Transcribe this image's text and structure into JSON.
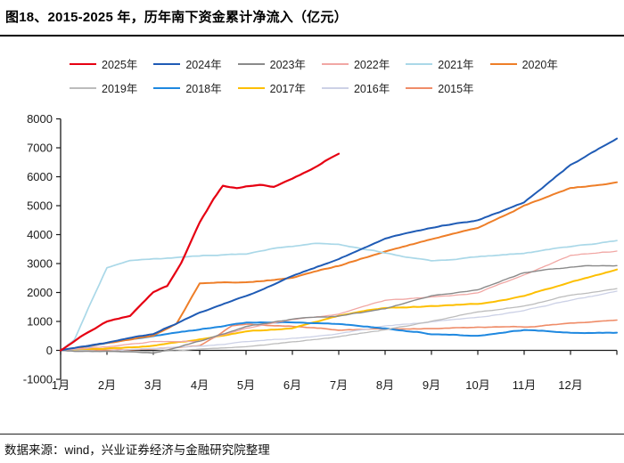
{
  "header": {
    "title": "图18、2015-2025 年，历年南下资金累计净流入（亿元）"
  },
  "footer": {
    "source": "数据来源：wind，兴业证券经济与金融研究院整理"
  },
  "chart_data": {
    "type": "line",
    "title": "历年南下资金累计净流入（亿元）",
    "xlabel": "",
    "ylabel": "",
    "ylim": [
      -1000,
      8000
    ],
    "ytick_interval": 1000,
    "yticks": [
      "8000",
      "7000",
      "6000",
      "5000",
      "4000",
      "3000",
      "2000",
      "1000",
      "0",
      "-1000"
    ],
    "xticks": [
      "1月",
      "2月",
      "3月",
      "4月",
      "5月",
      "6月",
      "7月",
      "8月",
      "9月",
      "10月",
      "11月",
      "12月"
    ],
    "x_unit": "months elapsed since Jan 1 (0 = Jan 1, 12 = Dec 31)",
    "grid": false,
    "legend_position": "top",
    "axis_color": "#1a1a1a",
    "series": [
      {
        "name": "2025年",
        "color": "#e60012",
        "x": [
          0,
          0.5,
          1,
          1.5,
          2,
          2.3,
          2.6,
          3,
          3.3,
          3.5,
          3.8,
          4,
          4.3,
          4.6,
          5,
          5.4,
          5.7,
          6
        ],
        "values": [
          0,
          550,
          1000,
          1200,
          2000,
          2200,
          3000,
          4400,
          5200,
          5650,
          5580,
          5650,
          5700,
          5620,
          5900,
          6200,
          6500,
          6750
        ]
      },
      {
        "name": "2024年",
        "color": "#1f5bb5",
        "x": [
          0,
          1,
          2,
          3,
          4,
          5,
          6,
          7,
          8,
          9,
          10,
          11,
          12
        ],
        "values": [
          0,
          250,
          580,
          1300,
          1900,
          2600,
          3200,
          3900,
          4250,
          4520,
          5100,
          6400,
          7300
        ]
      },
      {
        "name": "2023年",
        "color": "#8a8a8a",
        "x": [
          0,
          1,
          2,
          3,
          4,
          5,
          6,
          7,
          8,
          9,
          10,
          11,
          12
        ],
        "values": [
          0,
          -60,
          -120,
          300,
          800,
          1050,
          1170,
          1400,
          1850,
          2100,
          2700,
          2900,
          2950
        ]
      },
      {
        "name": "2022年",
        "color": "#f1a7a4",
        "x": [
          0,
          1,
          2,
          3,
          4,
          5,
          6,
          7,
          8,
          9,
          10,
          11,
          12
        ],
        "values": [
          0,
          100,
          300,
          350,
          800,
          1100,
          1250,
          1700,
          1800,
          1950,
          2600,
          3250,
          3400
        ]
      },
      {
        "name": "2021年",
        "color": "#aad8e8",
        "x": [
          0,
          0.3,
          0.6,
          1,
          1.5,
          2,
          3,
          4,
          4.5,
          5,
          5.5,
          6,
          7,
          8,
          9,
          10,
          11,
          12
        ],
        "values": [
          0,
          400,
          1500,
          2900,
          3150,
          3200,
          3250,
          3320,
          3500,
          3600,
          3720,
          3700,
          3400,
          3100,
          3250,
          3350,
          3550,
          3750
        ]
      },
      {
        "name": "2020年",
        "color": "#ee7e28",
        "x": [
          0,
          1,
          2,
          2.5,
          3,
          4,
          5,
          6,
          7,
          8,
          9,
          10,
          11,
          12
        ],
        "values": [
          0,
          250,
          500,
          900,
          2280,
          2340,
          2500,
          2900,
          3400,
          3800,
          4200,
          5000,
          5600,
          5800
        ]
      },
      {
        "name": "2019年",
        "color": "#bcbcbc",
        "x": [
          0,
          1,
          2,
          3,
          4,
          5,
          6,
          7,
          8,
          9,
          10,
          11,
          12
        ],
        "values": [
          0,
          -30,
          -50,
          0,
          80,
          250,
          450,
          700,
          1000,
          1300,
          1550,
          1950,
          2150
        ]
      },
      {
        "name": "2018年",
        "color": "#1e88e0",
        "x": [
          0,
          1,
          2,
          3,
          4,
          5,
          6,
          7,
          8,
          9,
          10,
          11,
          12
        ],
        "values": [
          0,
          300,
          450,
          700,
          950,
          1000,
          950,
          800,
          600,
          500,
          700,
          620,
          640
        ]
      },
      {
        "name": "2017年",
        "color": "#fdbf00",
        "x": [
          0,
          1,
          2,
          3,
          4,
          5,
          6,
          7,
          8,
          9,
          10,
          11,
          12
        ],
        "values": [
          0,
          80,
          150,
          400,
          700,
          800,
          1200,
          1480,
          1550,
          1630,
          1900,
          2400,
          2830
        ]
      },
      {
        "name": "2016年",
        "color": "#ccd1e6",
        "x": [
          0,
          1,
          2,
          3,
          4,
          5,
          6,
          7,
          8,
          9,
          10,
          11,
          12
        ],
        "values": [
          0,
          -30,
          50,
          150,
          280,
          400,
          550,
          800,
          950,
          1100,
          1350,
          1700,
          2000
        ]
      },
      {
        "name": "2015年",
        "color": "#ef8c68",
        "x": [
          0,
          1,
          2,
          3,
          3.4,
          3.7,
          4,
          5,
          6,
          7,
          8,
          9,
          10,
          11,
          12
        ],
        "values": [
          0,
          30,
          100,
          200,
          550,
          880,
          920,
          820,
          730,
          730,
          750,
          760,
          800,
          900,
          1000
        ]
      }
    ]
  }
}
